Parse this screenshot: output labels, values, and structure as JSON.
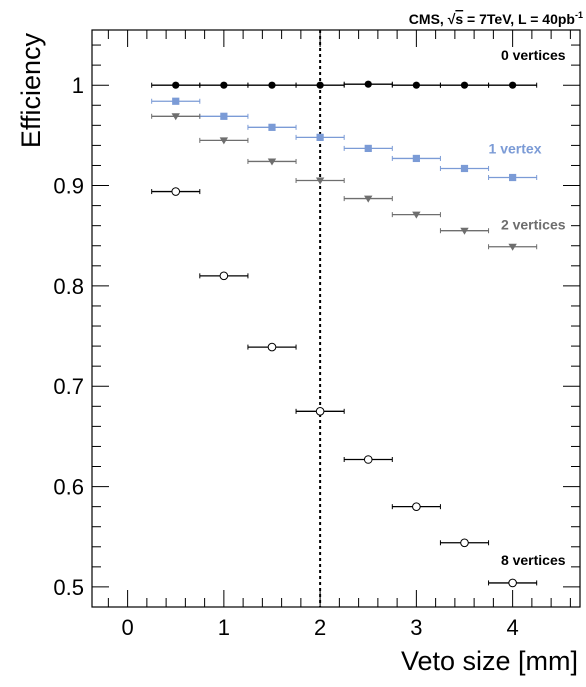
{
  "chart_data": {
    "type": "scatter",
    "header": {
      "prefix": "CMS, ",
      "sqrt": "√",
      "s_var": "s",
      "energy": " = 7TeV, L = 40pb",
      "exponent": "-1"
    },
    "xlabel": "Veto size [mm]",
    "ylabel": "Efficiency",
    "xlim": [
      -0.37,
      4.7
    ],
    "ylim": [
      0.48,
      1.055
    ],
    "xticks": [
      0,
      1,
      2,
      3,
      4
    ],
    "xtick_labels": [
      "0",
      "1",
      "2",
      "3",
      "4"
    ],
    "yticks": [
      0.5,
      0.6,
      0.7,
      0.8,
      0.9,
      1.0
    ],
    "ytick_labels": [
      "0.5",
      "0.6",
      "0.7",
      "0.8",
      "0.9",
      "1"
    ],
    "x_minor_step": 0.2,
    "y_minor_step": 0.02,
    "x_error_halfwidth": 0.25,
    "vertical_dashed_line_x": 2,
    "series": [
      {
        "name": "0 vertices",
        "color": "#000000",
        "marker": "circle-filled",
        "x": [
          0.5,
          1,
          1.5,
          2,
          2.5,
          3,
          3.5,
          4
        ],
        "y": [
          1.0,
          1.0,
          1.0,
          1.0,
          1.001,
          1.0,
          1.0,
          1.0
        ]
      },
      {
        "name": "1 vertex",
        "color": "#7B9BD6",
        "marker": "square-filled",
        "x": [
          0.25,
          0.5,
          1,
          1.5,
          2,
          2.5,
          3,
          3.5,
          4
        ],
        "y": [
          null,
          0.984,
          0.969,
          0.958,
          0.948,
          0.937,
          0.927,
          0.917,
          0.908
        ]
      },
      {
        "name": "2 vertices",
        "color": "#6E6E6E",
        "marker": "triangle-down-filled",
        "x": [
          0.5,
          1,
          1.5,
          2,
          2.5,
          3,
          3.5,
          4
        ],
        "y": [
          0.969,
          0.945,
          0.924,
          0.905,
          0.887,
          0.871,
          0.855,
          0.839
        ]
      },
      {
        "name": "8 vertices",
        "color": "#000000",
        "marker": "circle-open",
        "x": [
          0.5,
          1,
          1.5,
          2,
          2.5,
          3,
          3.5,
          4
        ],
        "y": [
          0.894,
          0.81,
          0.739,
          0.675,
          0.627,
          0.58,
          0.544,
          0.504
        ]
      }
    ],
    "series_labels": [
      {
        "text": "0 vertices",
        "color": "#000000",
        "ax": 4.55,
        "ay": 1.025
      },
      {
        "text": "1 vertex",
        "color": "#7B9BD6",
        "ax": 4.3,
        "ay": 0.932
      },
      {
        "text": "2 vertices",
        "color": "#6E6E6E",
        "ax": 4.55,
        "ay": 0.856
      },
      {
        "text": "8 vertices",
        "color": "#000000",
        "ax": 4.55,
        "ay": 0.522
      }
    ],
    "grid": false,
    "legend": "none"
  }
}
